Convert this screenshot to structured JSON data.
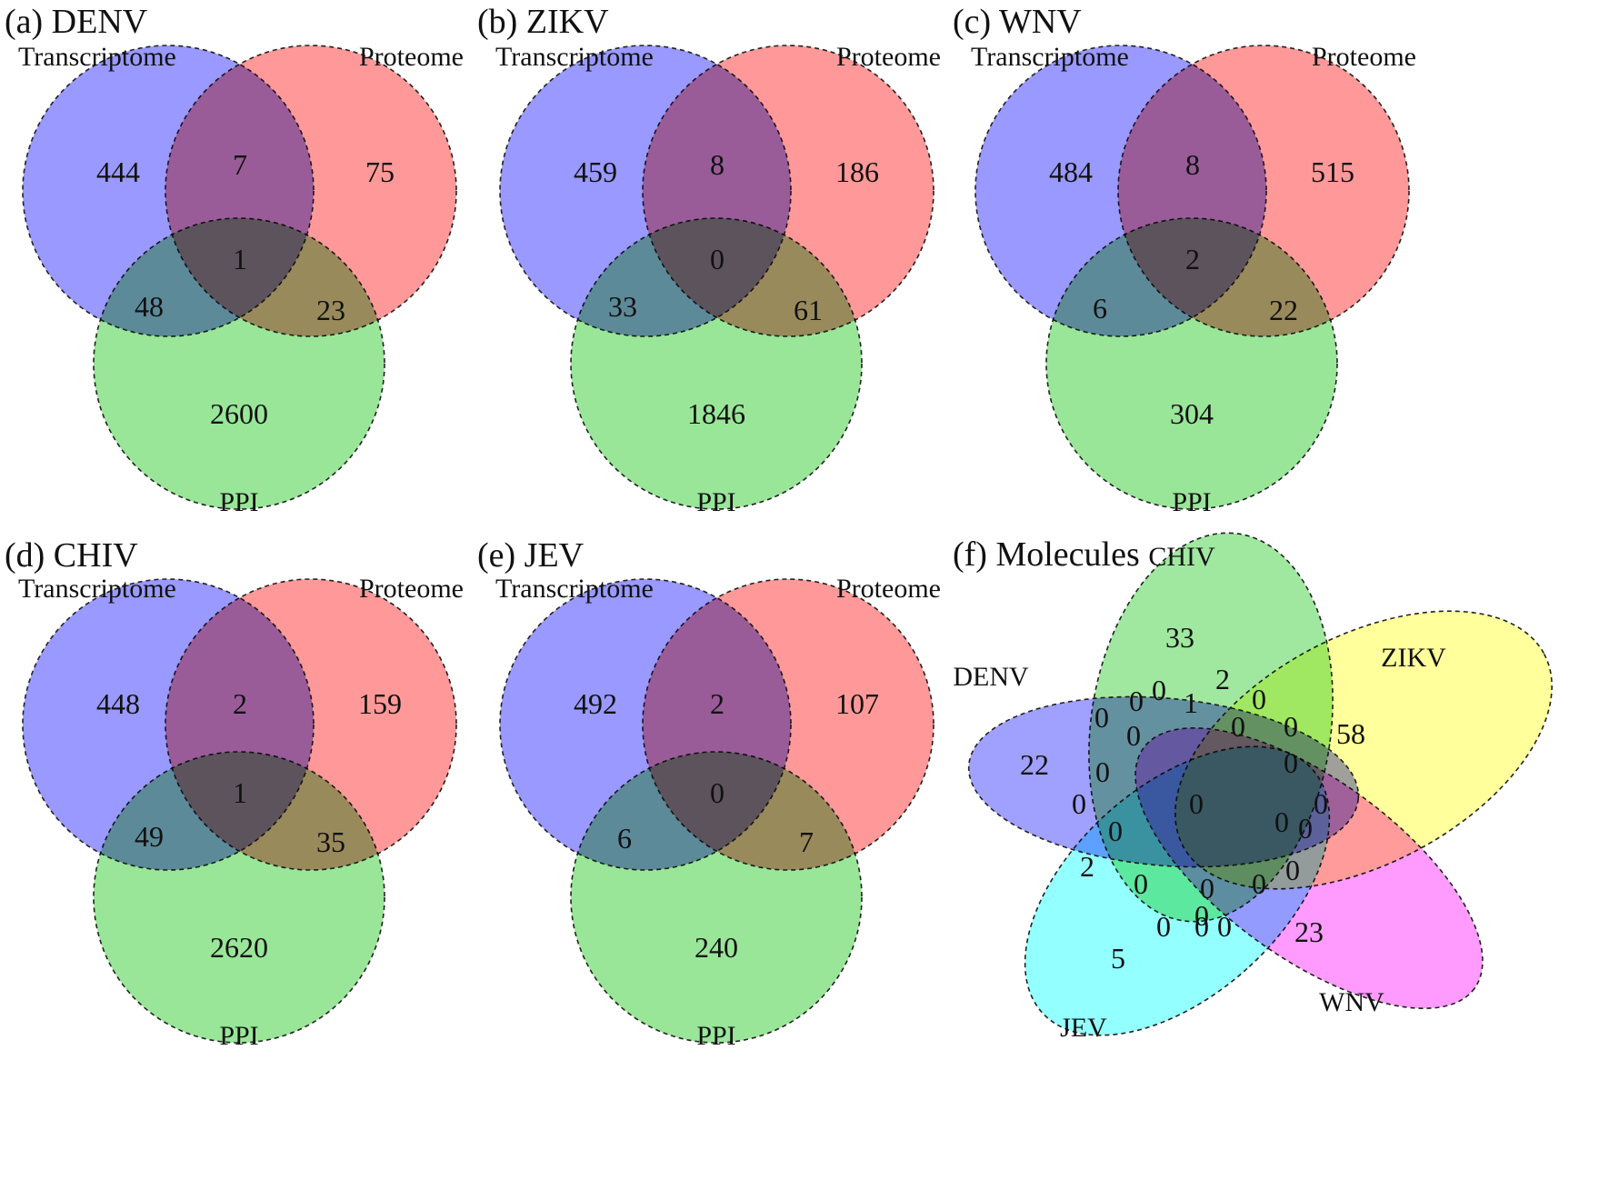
{
  "figure": {
    "panels": [
      {
        "title": "(a) DENV",
        "sets": [
          "Transcriptome",
          "Proteome",
          "PPI"
        ],
        "regions": {
          "transcriptome_only": "444",
          "proteome_only": "75",
          "ppi_only": "2600",
          "transcriptome_proteome": "7",
          "transcriptome_ppi": "48",
          "proteome_ppi": "23",
          "all_three": "1"
        }
      },
      {
        "title": "(b) ZIKV",
        "sets": [
          "Transcriptome",
          "Proteome",
          "PPI"
        ],
        "regions": {
          "transcriptome_only": "459",
          "proteome_only": "186",
          "ppi_only": "1846",
          "transcriptome_proteome": "8",
          "transcriptome_ppi": "33",
          "proteome_ppi": "61",
          "all_three": "0"
        }
      },
      {
        "title": "(c) WNV",
        "sets": [
          "Transcriptome",
          "Proteome",
          "PPI"
        ],
        "regions": {
          "transcriptome_only": "484",
          "proteome_only": "515",
          "ppi_only": "304",
          "transcriptome_proteome": "8",
          "transcriptome_ppi": "6",
          "proteome_ppi": "22",
          "all_three": "2"
        }
      },
      {
        "title": "(d) CHIV",
        "sets": [
          "Transcriptome",
          "Proteome",
          "PPI"
        ],
        "regions": {
          "transcriptome_only": "448",
          "proteome_only": "159",
          "ppi_only": "2620",
          "transcriptome_proteome": "2",
          "transcriptome_ppi": "49",
          "proteome_ppi": "35",
          "all_three": "1"
        }
      },
      {
        "title": "(e) JEV",
        "sets": [
          "Transcriptome",
          "Proteome",
          "PPI"
        ],
        "regions": {
          "transcriptome_only": "492",
          "proteome_only": "107",
          "ppi_only": "240",
          "transcriptome_proteome": "2",
          "transcriptome_ppi": "6",
          "proteome_ppi": "7",
          "all_three": "0"
        }
      }
    ],
    "molecules": {
      "title": "(f) Molecules",
      "sets": [
        "CHIV",
        "ZIKV",
        "DENV",
        "JEV",
        "WNV"
      ],
      "counts": [
        "33",
        "58",
        "22",
        "5",
        "23",
        "0",
        "2",
        "0",
        "1",
        "0",
        "0",
        "0",
        "0",
        "0",
        "0",
        "0",
        "0",
        "0",
        "0",
        "0",
        "0",
        "0",
        "2",
        "0",
        "0",
        "0",
        "0",
        "0",
        "0",
        "0",
        "0"
      ]
    },
    "colors": {
      "transcriptome": "#8080ff",
      "proteome": "#ff8080",
      "ppi": "#80e080",
      "chiv": "#80e080",
      "zikv": "#ffff66",
      "denv": "#8080ff",
      "jev": "#66ffff",
      "wnv": "#ff66ff"
    }
  }
}
